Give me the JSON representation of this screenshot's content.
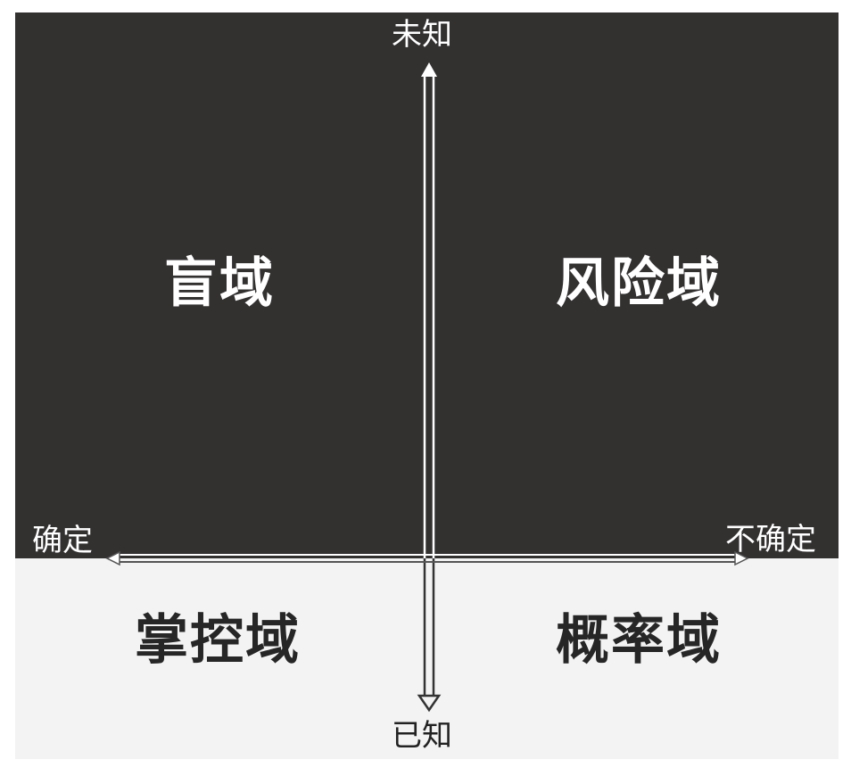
{
  "axes": {
    "top": "未知",
    "bottom": "已知",
    "left": "确定",
    "right": "不确定"
  },
  "quadrants": {
    "top_left": "盲域",
    "top_right": "风险域",
    "bottom_left": "掌控域",
    "bottom_right": "概率域"
  },
  "colors": {
    "dark_panel": "#333030",
    "light_panel": "#f3f3f3",
    "light_text": "#ffffff",
    "dark_text": "#262626"
  }
}
